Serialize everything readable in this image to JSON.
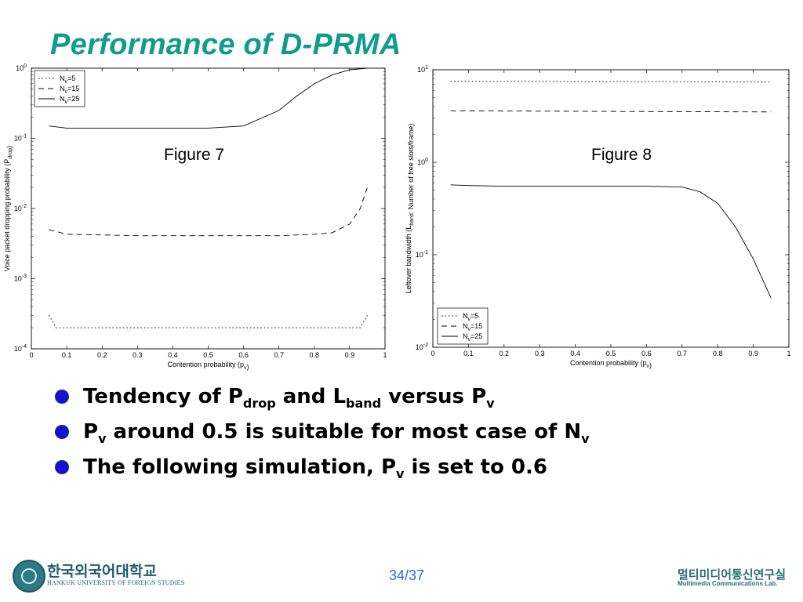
{
  "slide": {
    "title": "Performance of D-PRMA",
    "figure_labels": [
      "Figure 7",
      "Figure 8"
    ],
    "bullets": [
      {
        "parts": [
          {
            "t": "Tendency of P"
          },
          {
            "t": "drop",
            "sub": true
          },
          {
            "t": " and L"
          },
          {
            "t": "band",
            "sub": true
          },
          {
            "t": " versus P"
          },
          {
            "t": "v",
            "sub": true
          }
        ]
      },
      {
        "parts": [
          {
            "t": "P"
          },
          {
            "t": "v",
            "sub": true
          },
          {
            "t": " around 0.5 is suitable for most case of N"
          },
          {
            "t": "v",
            "sub": true
          }
        ]
      },
      {
        "parts": [
          {
            "t": "The following simulation, P"
          },
          {
            "t": "v",
            "sub": true
          },
          {
            "t": " is set to 0.6"
          }
        ]
      }
    ],
    "bullet_color": "#1414c8",
    "title_color": "#0f9b8e"
  },
  "footer": {
    "university_kr": "한국외국어대학교",
    "university_en": "HANKUK UNIVERSITY OF FOREIGN STUDIES",
    "page": "34/37",
    "lab_kr": "멀티미디어통신연구실",
    "lab_en": "Multimedia Communications Lab."
  },
  "chart_data": [
    {
      "type": "line",
      "title": "",
      "xlabel": "Contention probability (p_v)",
      "ylabel": "Voice packet dropping probability (P_drop)",
      "xlim": [
        0,
        1
      ],
      "ylim": [
        0.0001,
        1
      ],
      "yscale": "log",
      "x_ticks": [
        "0",
        "0.1",
        "0.2",
        "0.3",
        "0.4",
        "0.5",
        "0.6",
        "0.7",
        "0.8",
        "0.9",
        "1"
      ],
      "y_ticks": [
        "10^-4",
        "10^-3",
        "10^-2",
        "10^-1",
        "10^0"
      ],
      "legend_position": "top-left",
      "series": [
        {
          "name": "N_v=5",
          "style": "dotted",
          "x": [
            0.05,
            0.07,
            0.1,
            0.2,
            0.3,
            0.4,
            0.5,
            0.6,
            0.7,
            0.8,
            0.9,
            0.93,
            0.95
          ],
          "y": [
            0.0003,
            0.0002,
            0.0002,
            0.0002,
            0.0002,
            0.0002,
            0.0002,
            0.0002,
            0.0002,
            0.0002,
            0.0002,
            0.0002,
            0.0003
          ]
        },
        {
          "name": "N_v=15",
          "style": "dashed",
          "x": [
            0.05,
            0.1,
            0.2,
            0.3,
            0.4,
            0.5,
            0.6,
            0.7,
            0.8,
            0.85,
            0.9,
            0.93,
            0.95
          ],
          "y": [
            0.005,
            0.0043,
            0.0042,
            0.0041,
            0.0041,
            0.0041,
            0.0041,
            0.0041,
            0.0043,
            0.0045,
            0.006,
            0.01,
            0.02
          ]
        },
        {
          "name": "N_v=25",
          "style": "solid",
          "x": [
            0.05,
            0.1,
            0.2,
            0.3,
            0.4,
            0.5,
            0.6,
            0.7,
            0.75,
            0.8,
            0.85,
            0.9,
            0.95
          ],
          "y": [
            0.15,
            0.14,
            0.14,
            0.14,
            0.14,
            0.14,
            0.15,
            0.25,
            0.4,
            0.6,
            0.8,
            0.95,
            1.0
          ]
        }
      ]
    },
    {
      "type": "line",
      "title": "",
      "xlabel": "Contention probability (p_v)",
      "ylabel": "Leftover bandwidth (L_band: Number of free slots/frame)",
      "xlim": [
        0,
        1
      ],
      "ylim": [
        0.01,
        10
      ],
      "yscale": "log",
      "x_ticks": [
        "0",
        "0.1",
        "0.2",
        "0.3",
        "0.4",
        "0.5",
        "0.6",
        "0.7",
        "0.8",
        "0.9",
        "1"
      ],
      "y_ticks": [
        "10^-2",
        "10^-1",
        "10^0",
        "10^1"
      ],
      "legend_position": "bottom-left",
      "series": [
        {
          "name": "N_v=5",
          "style": "dotted",
          "x": [
            0.05,
            0.95
          ],
          "y": [
            7.5,
            7.4
          ]
        },
        {
          "name": "N_v=15",
          "style": "dashed",
          "x": [
            0.05,
            0.95
          ],
          "y": [
            3.6,
            3.5
          ]
        },
        {
          "name": "N_v=25",
          "style": "solid",
          "x": [
            0.05,
            0.1,
            0.2,
            0.3,
            0.4,
            0.5,
            0.6,
            0.7,
            0.75,
            0.8,
            0.85,
            0.9,
            0.95
          ],
          "y": [
            0.57,
            0.56,
            0.55,
            0.55,
            0.55,
            0.55,
            0.55,
            0.54,
            0.48,
            0.36,
            0.2,
            0.09,
            0.034
          ]
        }
      ]
    }
  ]
}
